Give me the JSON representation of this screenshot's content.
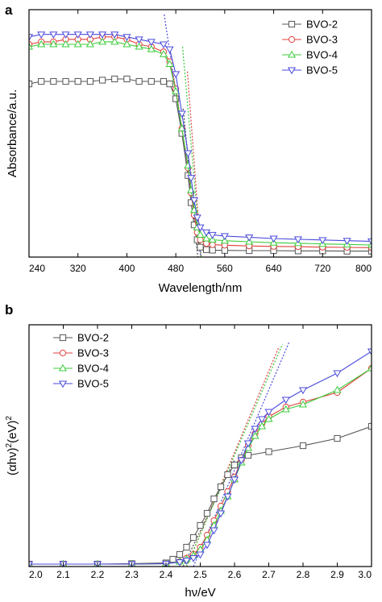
{
  "colors": {
    "BVO-2": "#555555",
    "BVO-3": "#e0403c",
    "BVO-4": "#3ccc3c",
    "BVO-5": "#4a4adc"
  },
  "markers": {
    "BVO-2": "square",
    "BVO-3": "circle",
    "BVO-4": "triangle-up",
    "BVO-5": "triangle-down"
  },
  "chart_data": [
    {
      "panel_label": "a",
      "type": "line",
      "xlabel": "Wavelength/nm",
      "ylabel": "Absorbance/a.u.",
      "xlim": [
        240,
        800
      ],
      "ylim": [
        0,
        1.0
      ],
      "xticks": [
        240,
        320,
        400,
        480,
        560,
        640,
        720,
        800
      ],
      "legend_position": "top-right",
      "tangent_lines": [
        {
          "series": "BVO-2",
          "x": [
            492,
            518
          ],
          "y": [
            0.6,
            -0.05
          ],
          "color": "#444444"
        },
        {
          "series": "BVO-3",
          "x": [
            499,
            523
          ],
          "y": [
            0.75,
            -0.05
          ],
          "color": "#e0403c"
        },
        {
          "series": "BVO-4",
          "x": [
            491,
            523
          ],
          "y": [
            0.85,
            -0.05
          ],
          "color": "#3ccc3c"
        },
        {
          "series": "BVO-5",
          "x": [
            461,
            524
          ],
          "y": [
            0.98,
            -0.05
          ],
          "color": "#4a4adc"
        }
      ],
      "series": [
        {
          "name": "BVO-2",
          "x": [
            240,
            260,
            280,
            300,
            320,
            340,
            360,
            380,
            400,
            420,
            440,
            460,
            470,
            480,
            490,
            500,
            505,
            510,
            515,
            520,
            530,
            540,
            560,
            600,
            640,
            680,
            720,
            760,
            800
          ],
          "y": [
            0.7,
            0.71,
            0.71,
            0.71,
            0.71,
            0.71,
            0.715,
            0.72,
            0.72,
            0.71,
            0.71,
            0.71,
            0.7,
            0.64,
            0.5,
            0.33,
            0.22,
            0.13,
            0.07,
            0.04,
            0.03,
            0.028,
            0.027,
            0.026,
            0.026,
            0.025,
            0.025,
            0.024,
            0.024
          ]
        },
        {
          "name": "BVO-3",
          "x": [
            240,
            260,
            280,
            300,
            320,
            340,
            360,
            380,
            400,
            420,
            440,
            460,
            470,
            480,
            490,
            500,
            505,
            510,
            515,
            520,
            530,
            540,
            560,
            600,
            640,
            680,
            720,
            760,
            800
          ],
          "y": [
            0.86,
            0.87,
            0.87,
            0.88,
            0.88,
            0.88,
            0.89,
            0.89,
            0.88,
            0.86,
            0.85,
            0.83,
            0.79,
            0.68,
            0.52,
            0.36,
            0.26,
            0.17,
            0.1,
            0.07,
            0.055,
            0.05,
            0.048,
            0.045,
            0.043,
            0.042,
            0.04,
            0.039,
            0.038
          ]
        },
        {
          "name": "BVO-4",
          "x": [
            240,
            260,
            280,
            300,
            320,
            340,
            360,
            380,
            400,
            420,
            440,
            460,
            470,
            480,
            490,
            500,
            505,
            510,
            515,
            520,
            530,
            540,
            560,
            600,
            640,
            680,
            720,
            760,
            800
          ],
          "y": [
            0.85,
            0.86,
            0.86,
            0.86,
            0.86,
            0.86,
            0.87,
            0.87,
            0.86,
            0.85,
            0.84,
            0.82,
            0.78,
            0.67,
            0.52,
            0.37,
            0.27,
            0.19,
            0.12,
            0.09,
            0.075,
            0.07,
            0.066,
            0.062,
            0.058,
            0.056,
            0.053,
            0.051,
            0.049
          ]
        },
        {
          "name": "BVO-5",
          "x": [
            240,
            260,
            280,
            300,
            320,
            340,
            360,
            380,
            400,
            420,
            440,
            460,
            470,
            480,
            490,
            500,
            505,
            510,
            515,
            520,
            530,
            540,
            560,
            600,
            640,
            680,
            720,
            760,
            800
          ],
          "y": [
            0.89,
            0.9,
            0.9,
            0.9,
            0.9,
            0.9,
            0.9,
            0.9,
            0.89,
            0.88,
            0.87,
            0.86,
            0.84,
            0.74,
            0.58,
            0.42,
            0.32,
            0.23,
            0.16,
            0.12,
            0.1,
            0.09,
            0.085,
            0.08,
            0.075,
            0.072,
            0.069,
            0.066,
            0.064
          ]
        }
      ]
    },
    {
      "panel_label": "b",
      "type": "line",
      "xlabel": "hν/eV",
      "ylabel_parts": [
        "(αhν)",
        "2",
        "(eV)",
        "2"
      ],
      "xlim": [
        2.0,
        3.0
      ],
      "ylim": [
        0,
        1.0
      ],
      "xticks": [
        2.0,
        2.1,
        2.2,
        2.3,
        2.4,
        2.5,
        2.6,
        2.7,
        2.8,
        2.9,
        3.0
      ],
      "xtick_labels": [
        "2.0",
        "2.1",
        "2.2",
        "2.3",
        "2.4",
        "2.5",
        "2.6",
        "2.7",
        "2.8",
        "2.9",
        "3.0"
      ],
      "legend_position": "top-left",
      "tangent_lines": [
        {
          "series": "BVO-2",
          "x": [
            2.45,
            2.6
          ],
          "y": [
            0.0,
            0.44
          ],
          "color": "#444444"
        },
        {
          "series": "BVO-3",
          "x": [
            2.46,
            2.73
          ],
          "y": [
            0.0,
            0.91
          ],
          "color": "#e0403c"
        },
        {
          "series": "BVO-4",
          "x": [
            2.46,
            2.74
          ],
          "y": [
            0.0,
            0.92
          ],
          "color": "#3ccc3c"
        },
        {
          "series": "BVO-5",
          "x": [
            2.48,
            2.76
          ],
          "y": [
            0.0,
            0.93
          ],
          "color": "#4a4adc"
        }
      ],
      "series": [
        {
          "name": "BVO-2",
          "x": [
            2.0,
            2.1,
            2.2,
            2.3,
            2.4,
            2.42,
            2.44,
            2.46,
            2.48,
            2.5,
            2.52,
            2.54,
            2.56,
            2.58,
            2.6,
            2.62,
            2.64,
            2.7,
            2.8,
            2.9,
            3.0
          ],
          "y": [
            0.01,
            0.01,
            0.01,
            0.012,
            0.015,
            0.03,
            0.05,
            0.08,
            0.12,
            0.17,
            0.22,
            0.28,
            0.33,
            0.38,
            0.42,
            0.45,
            0.46,
            0.475,
            0.5,
            0.53,
            0.58
          ]
        },
        {
          "name": "BVO-3",
          "x": [
            2.0,
            2.1,
            2.2,
            2.3,
            2.4,
            2.44,
            2.46,
            2.48,
            2.5,
            2.52,
            2.54,
            2.56,
            2.58,
            2.6,
            2.62,
            2.64,
            2.66,
            2.68,
            2.7,
            2.75,
            2.8,
            2.9,
            3.0
          ],
          "y": [
            0.01,
            0.01,
            0.01,
            0.01,
            0.012,
            0.02,
            0.035,
            0.05,
            0.08,
            0.13,
            0.19,
            0.25,
            0.31,
            0.37,
            0.44,
            0.5,
            0.55,
            0.59,
            0.62,
            0.66,
            0.68,
            0.72,
            0.82
          ]
        },
        {
          "name": "BVO-4",
          "x": [
            2.0,
            2.1,
            2.2,
            2.3,
            2.4,
            2.44,
            2.46,
            2.48,
            2.5,
            2.52,
            2.54,
            2.56,
            2.58,
            2.6,
            2.62,
            2.64,
            2.66,
            2.68,
            2.7,
            2.75,
            2.8,
            2.9,
            3.0
          ],
          "y": [
            0.01,
            0.01,
            0.01,
            0.01,
            0.012,
            0.02,
            0.03,
            0.045,
            0.07,
            0.11,
            0.17,
            0.23,
            0.29,
            0.36,
            0.43,
            0.49,
            0.54,
            0.58,
            0.61,
            0.65,
            0.67,
            0.73,
            0.82
          ]
        },
        {
          "name": "BVO-5",
          "x": [
            2.0,
            2.1,
            2.2,
            2.3,
            2.4,
            2.44,
            2.46,
            2.48,
            2.5,
            2.52,
            2.54,
            2.56,
            2.58,
            2.6,
            2.62,
            2.64,
            2.66,
            2.68,
            2.7,
            2.75,
            2.8,
            2.9,
            3.0
          ],
          "y": [
            0.01,
            0.01,
            0.01,
            0.01,
            0.012,
            0.018,
            0.025,
            0.035,
            0.05,
            0.09,
            0.15,
            0.22,
            0.29,
            0.36,
            0.44,
            0.51,
            0.57,
            0.61,
            0.64,
            0.69,
            0.73,
            0.8,
            0.89
          ]
        }
      ]
    }
  ]
}
